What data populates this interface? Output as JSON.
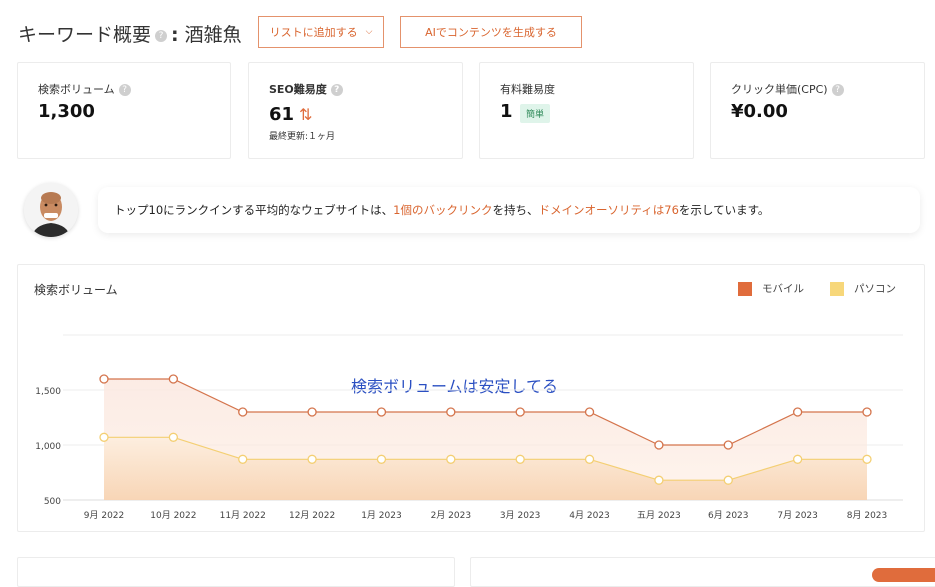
{
  "header": {
    "title_prefix": "キーワード概要",
    "title_sep": ":",
    "keyword": "酒雑魚",
    "add_to_list_label": "リストに追加する",
    "ai_generate_label": "AIでコンテンツを生成する"
  },
  "metrics": {
    "search_volume": {
      "label": "検索ボリューム",
      "value": "1,300"
    },
    "seo_difficulty": {
      "label": "SEO難易度",
      "value": "61",
      "updated": "最終更新:１ヶ月"
    },
    "paid_difficulty": {
      "label": "有料難易度",
      "value": "1",
      "badge": "簡単"
    },
    "cpc": {
      "label": "クリック単価(CPC)",
      "value": "¥0.00"
    }
  },
  "banner": {
    "t1": "トップ10にランクインする平均的なウェブサイトは、",
    "t2": "1個のバックリンク",
    "t3": "を持ち、",
    "t4": "ドメインオーソリティは76",
    "t5": "を示しています。"
  },
  "chart_card": {
    "title": "検索ボリューム",
    "annotation": "検索ボリュームは安定してる"
  },
  "colors": {
    "accent": "#d9652f",
    "mobile": "#e06c3c",
    "desktop": "#f7d77a"
  },
  "chart_data": {
    "type": "area",
    "categories": [
      "9月 2022",
      "10月 2022",
      "11月 2022",
      "12月 2022",
      "1月 2023",
      "2月 2023",
      "3月 2023",
      "4月 2023",
      "五月 2023",
      "6月 2023",
      "7月 2023",
      "8月 2023"
    ],
    "series": [
      {
        "name": "モバイル",
        "values": [
          1600,
          1600,
          1300,
          1300,
          1300,
          1300,
          1300,
          1300,
          1000,
          1000,
          1300,
          1300
        ]
      },
      {
        "name": "パソコン",
        "values": [
          1070,
          1070,
          870,
          870,
          870,
          870,
          870,
          870,
          680,
          680,
          870,
          870
        ]
      }
    ],
    "y_ticks": [
      "500",
      "1,000",
      "1,500"
    ],
    "ylim": [
      500,
      2000
    ],
    "legend": "top-right",
    "grid": true
  }
}
